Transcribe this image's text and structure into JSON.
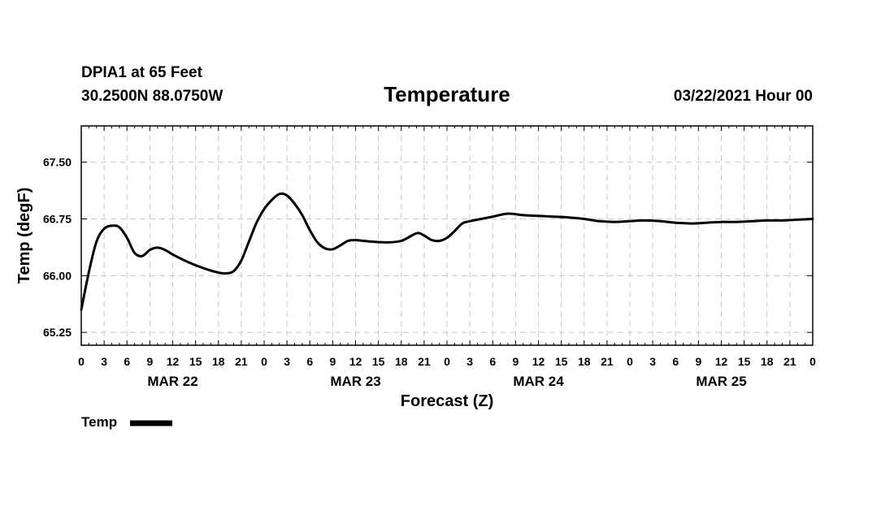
{
  "header": {
    "station": "DPIA1 at 65 Feet",
    "coords": "30.2500N 88.0750W",
    "title": "Temperature",
    "timestamp": "03/22/2021 Hour 00"
  },
  "legend": {
    "label": "Temp"
  },
  "chart_data": {
    "type": "line",
    "title": "Temperature",
    "xlabel": "Forecast (Z)",
    "ylabel": "Temp (degF)",
    "x_unit": "forecast hour",
    "xlim": [
      0,
      96
    ],
    "ylim": [
      65.08,
      67.98
    ],
    "y_ticks": [
      65.25,
      66.0,
      66.75,
      67.5
    ],
    "y_tick_labels": [
      "65.25",
      "66.00",
      "66.75",
      "67.50"
    ],
    "x_ticks": [
      0,
      3,
      6,
      9,
      12,
      15,
      18,
      21,
      24,
      27,
      30,
      33,
      36,
      39,
      42,
      45,
      48,
      51,
      54,
      57,
      60,
      63,
      66,
      69,
      72,
      75,
      78,
      81,
      84,
      87,
      90,
      93,
      96
    ],
    "x_tick_labels": [
      "0",
      "3",
      "6",
      "9",
      "12",
      "15",
      "18",
      "21",
      "0",
      "3",
      "6",
      "9",
      "12",
      "15",
      "18",
      "21",
      "0",
      "3",
      "6",
      "9",
      "12",
      "15",
      "18",
      "21",
      "0",
      "3",
      "6",
      "9",
      "12",
      "15",
      "18",
      "21",
      "0"
    ],
    "day_labels": [
      {
        "hour": 12,
        "label": "MAR 22"
      },
      {
        "hour": 36,
        "label": "MAR 23"
      },
      {
        "hour": 60,
        "label": "MAR 24"
      },
      {
        "hour": 84,
        "label": "MAR 25"
      }
    ],
    "grid": true,
    "legend_position": "bottom-left",
    "series": [
      {
        "name": "Temp",
        "color": "#000000",
        "x": [
          0,
          1,
          2,
          3,
          4,
          5,
          6,
          7,
          8,
          9,
          10,
          11,
          12,
          14,
          16,
          18,
          19,
          20,
          21,
          22,
          23,
          24,
          25,
          26,
          27,
          28,
          29,
          30,
          31,
          32,
          33,
          34,
          35,
          36,
          37,
          38,
          40,
          42,
          44,
          45,
          46,
          47,
          48,
          49,
          50,
          51,
          52,
          53,
          54,
          56,
          58,
          60,
          62,
          64,
          66,
          68,
          70,
          72,
          74,
          76,
          78,
          80,
          82,
          84,
          86,
          88,
          90,
          92,
          94,
          96
        ],
        "y": [
          65.55,
          66.05,
          66.45,
          66.62,
          66.66,
          66.64,
          66.5,
          66.3,
          66.26,
          66.34,
          66.37,
          66.34,
          66.28,
          66.18,
          66.1,
          66.04,
          66.03,
          66.06,
          66.2,
          66.45,
          66.7,
          66.88,
          67.0,
          67.08,
          67.06,
          66.95,
          66.8,
          66.6,
          66.44,
          66.36,
          66.35,
          66.4,
          66.46,
          66.47,
          66.46,
          66.45,
          66.44,
          66.46,
          66.56,
          66.53,
          66.47,
          66.46,
          66.5,
          66.59,
          66.69,
          66.72,
          66.74,
          66.76,
          66.78,
          66.82,
          66.8,
          66.79,
          66.78,
          66.77,
          66.75,
          66.72,
          66.71,
          66.72,
          66.73,
          66.72,
          66.7,
          66.69,
          66.7,
          66.71,
          66.71,
          66.72,
          66.73,
          66.73,
          66.74,
          66.75
        ]
      }
    ]
  }
}
